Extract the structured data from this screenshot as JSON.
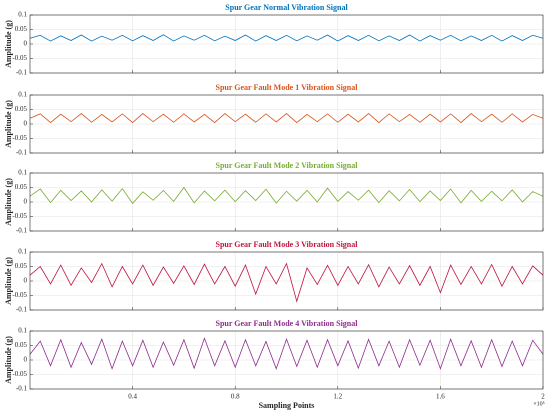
{
  "chart_data": [
    {
      "type": "line",
      "title": "Spur Gear Normal Vibration Signal",
      "ylabel": "Amplitude (g)",
      "color": "#0072bd",
      "grid": true,
      "xlim": [
        0,
        2
      ],
      "xticks": [
        0.4,
        0.8,
        1.2,
        1.6,
        2
      ],
      "ylim": [
        -0.1,
        0.1
      ],
      "yticks": [
        -0.1,
        -0.05,
        0,
        0.05,
        0.1
      ],
      "x": [
        0,
        0.04,
        0.08,
        0.12,
        0.16,
        0.2,
        0.24,
        0.28,
        0.32,
        0.36,
        0.4,
        0.44,
        0.48,
        0.52,
        0.56,
        0.6,
        0.64,
        0.68,
        0.72,
        0.76,
        0.8,
        0.84,
        0.88,
        0.92,
        0.96,
        1,
        1.04,
        1.08,
        1.12,
        1.16,
        1.2,
        1.24,
        1.28,
        1.32,
        1.36,
        1.4,
        1.44,
        1.48,
        1.52,
        1.56,
        1.6,
        1.64,
        1.68,
        1.72,
        1.76,
        1.8,
        1.84,
        1.88,
        1.92,
        1.96,
        2
      ],
      "values": [
        0.02,
        0.03,
        0.01,
        0.028,
        0.012,
        0.031,
        0.01,
        0.027,
        0.013,
        0.03,
        0.011,
        0.029,
        0.012,
        0.032,
        0.01,
        0.028,
        0.013,
        0.03,
        0.011,
        0.027,
        0.012,
        0.031,
        0.01,
        0.029,
        0.012,
        0.03,
        0.011,
        0.028,
        0.013,
        0.031,
        0.01,
        0.029,
        0.012,
        0.03,
        0.011,
        0.028,
        0.012,
        0.031,
        0.01,
        0.029,
        0.013,
        0.03,
        0.011,
        0.028,
        0.012,
        0.03,
        0.01,
        0.029,
        0.012,
        0.03,
        0.02
      ]
    },
    {
      "type": "line",
      "title": "Spur Gear Fault Mode 1 Vibration Signal",
      "ylabel": "Amplitude (g)",
      "color": "#d95319",
      "grid": true,
      "xlim": [
        0,
        2
      ],
      "xticks": [
        0.4,
        0.8,
        1.2,
        1.6,
        2
      ],
      "ylim": [
        -0.1,
        0.1
      ],
      "yticks": [
        -0.1,
        -0.05,
        0,
        0.05,
        0.1
      ],
      "x": [
        0,
        0.04,
        0.08,
        0.12,
        0.16,
        0.2,
        0.24,
        0.28,
        0.32,
        0.36,
        0.4,
        0.44,
        0.48,
        0.52,
        0.56,
        0.6,
        0.64,
        0.68,
        0.72,
        0.76,
        0.8,
        0.84,
        0.88,
        0.92,
        0.96,
        1,
        1.04,
        1.08,
        1.12,
        1.16,
        1.2,
        1.24,
        1.28,
        1.32,
        1.36,
        1.4,
        1.44,
        1.48,
        1.52,
        1.56,
        1.6,
        1.64,
        1.68,
        1.72,
        1.76,
        1.8,
        1.84,
        1.88,
        1.92,
        1.96,
        2
      ],
      "values": [
        0.02,
        0.035,
        0.005,
        0.034,
        0.008,
        0.036,
        0.006,
        0.033,
        0.007,
        0.035,
        0.005,
        0.036,
        0.008,
        0.034,
        0.006,
        0.035,
        0.007,
        0.033,
        0.005,
        0.036,
        0.008,
        0.034,
        0.006,
        0.035,
        0.007,
        0.036,
        0.005,
        0.033,
        0.008,
        0.035,
        0.006,
        0.034,
        0.007,
        0.036,
        0.005,
        0.035,
        0.008,
        0.033,
        0.006,
        0.034,
        0.007,
        0.035,
        0.005,
        0.036,
        0.008,
        0.034,
        0.006,
        0.035,
        0.007,
        0.033,
        0.02
      ]
    },
    {
      "type": "line",
      "title": "Spur Gear Fault Mode 2 Vibration Signal",
      "ylabel": "Amplitude (g)",
      "color": "#77ac30",
      "grid": true,
      "xlim": [
        0,
        2
      ],
      "xticks": [
        0.4,
        0.8,
        1.2,
        1.6,
        2
      ],
      "ylim": [
        -0.1,
        0.1
      ],
      "yticks": [
        -0.1,
        -0.05,
        0,
        0.05,
        0.1
      ],
      "x": [
        0,
        0.04,
        0.08,
        0.12,
        0.16,
        0.2,
        0.24,
        0.28,
        0.32,
        0.36,
        0.4,
        0.44,
        0.48,
        0.52,
        0.56,
        0.6,
        0.64,
        0.68,
        0.72,
        0.76,
        0.8,
        0.84,
        0.88,
        0.92,
        0.96,
        1,
        1.04,
        1.08,
        1.12,
        1.16,
        1.2,
        1.24,
        1.28,
        1.32,
        1.36,
        1.4,
        1.44,
        1.48,
        1.52,
        1.56,
        1.6,
        1.64,
        1.68,
        1.72,
        1.76,
        1.8,
        1.84,
        1.88,
        1.92,
        1.96,
        2
      ],
      "values": [
        0.02,
        0.045,
        -0.002,
        0.04,
        0.005,
        0.038,
        0.0,
        0.042,
        0.003,
        0.046,
        -0.005,
        0.035,
        0.006,
        0.04,
        0.002,
        0.05,
        -0.003,
        0.038,
        0.004,
        0.041,
        0.001,
        0.039,
        0.005,
        0.044,
        -0.004,
        0.037,
        0.003,
        0.04,
        0.0,
        0.048,
        0.002,
        0.036,
        0.006,
        0.041,
        -0.002,
        0.039,
        0.004,
        0.043,
        0.001,
        0.038,
        0.005,
        0.045,
        -0.003,
        0.04,
        0.002,
        0.037,
        0.004,
        0.042,
        0.0,
        0.036,
        0.02
      ]
    },
    {
      "type": "line",
      "title": "Spur Gear Fault Mode 3 Vibration Signal",
      "ylabel": "Amplitude (g)",
      "color": "#c0143c",
      "grid": true,
      "xlim": [
        0,
        2
      ],
      "xticks": [
        0.4,
        0.8,
        1.2,
        1.6,
        2
      ],
      "ylim": [
        -0.1,
        0.1
      ],
      "yticks": [
        -0.1,
        -0.05,
        0,
        0.05,
        0.1
      ],
      "x": [
        0,
        0.04,
        0.08,
        0.12,
        0.16,
        0.2,
        0.24,
        0.28,
        0.32,
        0.36,
        0.4,
        0.44,
        0.48,
        0.52,
        0.56,
        0.6,
        0.64,
        0.68,
        0.72,
        0.76,
        0.8,
        0.84,
        0.88,
        0.92,
        0.96,
        1,
        1.04,
        1.08,
        1.12,
        1.16,
        1.2,
        1.24,
        1.28,
        1.32,
        1.36,
        1.4,
        1.44,
        1.48,
        1.52,
        1.56,
        1.6,
        1.64,
        1.68,
        1.72,
        1.76,
        1.8,
        1.84,
        1.88,
        1.92,
        1.96,
        2
      ],
      "values": [
        0.02,
        0.05,
        -0.01,
        0.055,
        -0.015,
        0.045,
        -0.005,
        0.06,
        -0.02,
        0.05,
        -0.01,
        0.055,
        -0.015,
        0.048,
        -0.008,
        0.052,
        -0.012,
        0.058,
        -0.01,
        0.05,
        -0.018,
        0.055,
        -0.045,
        0.05,
        -0.01,
        0.06,
        -0.07,
        0.045,
        -0.012,
        0.054,
        -0.015,
        0.05,
        -0.01,
        0.056,
        -0.02,
        0.048,
        -0.01,
        0.053,
        -0.015,
        0.05,
        -0.04,
        0.055,
        -0.012,
        0.05,
        -0.01,
        0.057,
        -0.018,
        0.05,
        -0.01,
        0.052,
        0.02
      ]
    },
    {
      "type": "line",
      "title": "Spur Gear Fault Mode 4 Vibration Signal",
      "ylabel": "Amplitude (g)",
      "xlabel": "Sampling Points",
      "x_multiplier": "×10⁵",
      "color": "#8e2c8e",
      "grid": true,
      "xlim": [
        0,
        2
      ],
      "xticks": [
        0.4,
        0.8,
        1.2,
        1.6,
        2
      ],
      "ylim": [
        -0.1,
        0.1
      ],
      "yticks": [
        -0.1,
        -0.05,
        0,
        0.05,
        0.1
      ],
      "x": [
        0,
        0.04,
        0.08,
        0.12,
        0.16,
        0.2,
        0.24,
        0.28,
        0.32,
        0.36,
        0.4,
        0.44,
        0.48,
        0.52,
        0.56,
        0.6,
        0.64,
        0.68,
        0.72,
        0.76,
        0.8,
        0.84,
        0.88,
        0.92,
        0.96,
        1,
        1.04,
        1.08,
        1.12,
        1.16,
        1.2,
        1.24,
        1.28,
        1.32,
        1.36,
        1.4,
        1.44,
        1.48,
        1.52,
        1.56,
        1.6,
        1.64,
        1.68,
        1.72,
        1.76,
        1.8,
        1.84,
        1.88,
        1.92,
        1.96,
        2
      ],
      "values": [
        0.02,
        0.065,
        -0.02,
        0.07,
        -0.025,
        0.06,
        -0.015,
        0.072,
        -0.03,
        0.065,
        -0.02,
        0.068,
        -0.025,
        0.062,
        -0.018,
        0.07,
        -0.028,
        0.075,
        -0.02,
        0.066,
        -0.025,
        0.07,
        -0.02,
        0.064,
        -0.03,
        0.072,
        -0.022,
        0.068,
        -0.025,
        0.07,
        -0.02,
        0.066,
        -0.028,
        0.071,
        -0.02,
        0.065,
        -0.025,
        0.07,
        -0.018,
        0.068,
        -0.03,
        0.072,
        -0.02,
        0.066,
        -0.025,
        0.07,
        -0.022,
        0.065,
        -0.02,
        0.068,
        0.02
      ]
    }
  ]
}
